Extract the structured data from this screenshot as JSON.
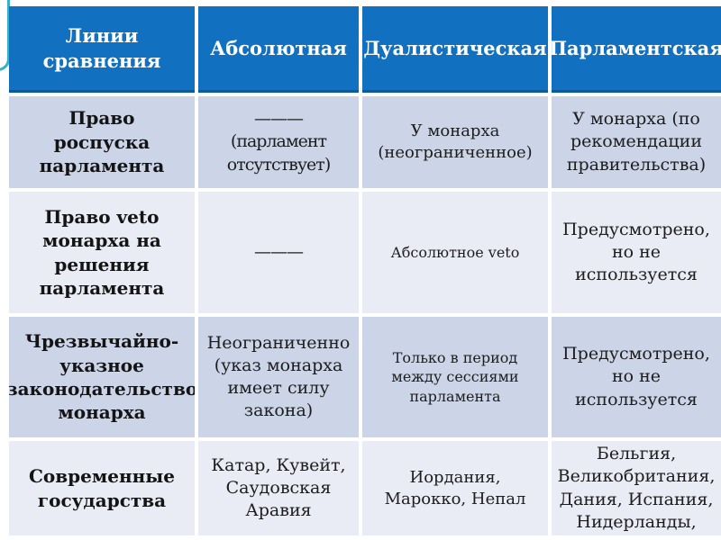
{
  "slide": {
    "kind": "presentation-table-slide"
  },
  "colors": {
    "header_bg": "#1270c0",
    "header_edge": "#0a5a9c",
    "band_dark": "#ccd4e8",
    "band_light": "#e9ecf5",
    "accent_teal": "#35b2c6",
    "text": "#1d1d1d"
  },
  "table": {
    "headers": [
      "Линии сравнения",
      "Абсолютная",
      "Дуалистическая",
      "Парламентская"
    ],
    "rows": [
      {
        "label": "Право роспуска парламента",
        "cells": [
          "———\n(парламент отсутствует)",
          "У монарха (неограниченное)",
          "У монарха (по рекомендации правительства)"
        ]
      },
      {
        "label": "Право veto монарха на решения парламента",
        "cells": [
          "———",
          "Абсолютное veto",
          "Предусмотрено, но не используется"
        ]
      },
      {
        "label": "Чрезвычайно-указное законодательство монарха",
        "cells": [
          "Неограниченно (указ монарха имеет силу закона)",
          "Только в период между сессиями парламента",
          "Предусмотрено, но не используется"
        ]
      },
      {
        "label": "Современные государства",
        "cells": [
          "Катар, Кувейт, Саудовская Аравия",
          "Иордания, Марокко, Непал",
          "Бельгия, Великобритания, Дания, Испания, Нидерланды,"
        ]
      }
    ]
  }
}
